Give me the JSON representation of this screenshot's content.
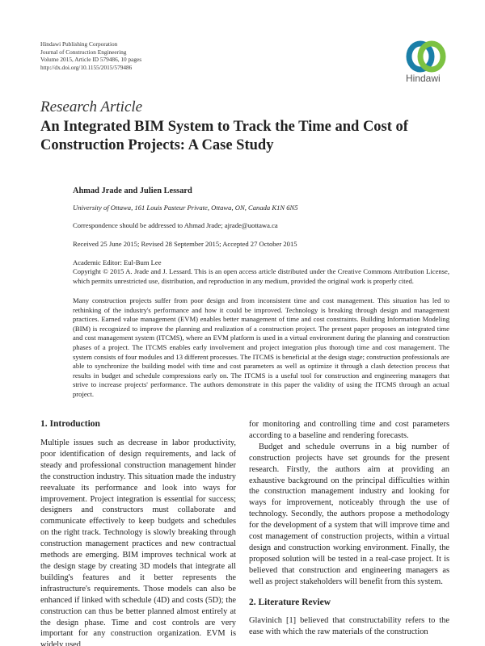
{
  "header": {
    "lines": [
      "Hindawi Publishing Corporation",
      "Journal of Construction Engineering",
      "Volume 2015, Article ID 579486, 10 pages",
      "http://dx.doi.org/10.1155/2015/579486"
    ],
    "logo_text": "Hindawi",
    "logo_colors": [
      "#1b7fa8",
      "#7cc242"
    ]
  },
  "article_type": "Research Article",
  "title": "An Integrated BIM System to Track the Time and Cost of Construction Projects: A Case Study",
  "authors": "Ahmad Jrade and Julien Lessard",
  "affiliation": "University of Ottawa, 161 Louis Pasteur Private, Ottawa, ON, Canada K1N 6N5",
  "correspondence": "Correspondence should be addressed to Ahmad Jrade; ajrade@uottawa.ca",
  "dates": "Received 25 June 2015; Revised 28 September 2015; Accepted 27 October 2015",
  "editor": "Academic Editor: Eul-Bum Lee",
  "copyright": "Copyright © 2015 A. Jrade and J. Lessard. This is an open access article distributed under the Creative Commons Attribution License, which permits unrestricted use, distribution, and reproduction in any medium, provided the original work is properly cited.",
  "abstract": "Many construction projects suffer from poor design and from inconsistent time and cost management. This situation has led to rethinking of the industry's performance and how it could be improved. Technology is breaking through design and management practices. Earned value management (EVM) enables better management of time and cost constraints. Building Information Modeling (BIM) is recognized to improve the planning and realization of a construction project. The present paper proposes an integrated time and cost management system (ITCMS), where an EVM platform is used in a virtual environment during the planning and construction phases of a project. The ITCMS enables early involvement and project integration plus thorough time and cost management. The system consists of four modules and 13 different processes. The ITCMS is beneficial at the design stage; construction professionals are able to synchronize the building model with time and cost parameters as well as optimize it through a clash detection process that results in budget and schedule compressions early on. The ITCMS is a useful tool for construction and engineering managers that strive to increase projects' performance. The authors demonstrate in this paper the validity of using the ITCMS through an actual project.",
  "sections": {
    "intro_heading": "1. Introduction",
    "intro_p1": "Multiple issues such as decrease in labor productivity, poor identification of design requirements, and lack of steady and professional construction management hinder the construction industry. This situation made the industry reevaluate its performance and look into ways for improvement. Project integration is essential for success; designers and constructors must collaborate and communicate effectively to keep budgets and schedules on the right track. Technology is slowly breaking through construction management practices and new contractual methods are emerging. BIM improves technical work at the design stage by creating 3D models that integrate all building's features and it better represents the infrastructure's requirements. Those models can also be enhanced if linked with schedule (4D) and costs (5D); the construction can thus be better planned almost entirely at the design phase. Time and cost controls are very important for any construction organization. EVM is widely used",
    "intro_p1_cont": "for monitoring and controlling time and cost parameters according to a baseline and rendering forecasts.",
    "intro_p2": "Budget and schedule overruns in a big number of construction projects have set grounds for the present research. Firstly, the authors aim at providing an exhaustive background on the principal difficulties within the construction management industry and looking for ways for improvement, noticeably through the use of technology. Secondly, the authors propose a methodology for the development of a system that will improve time and cost management of construction projects, within a virtual design and construction working environment. Finally, the proposed solution will be tested in a real-case project. It is believed that construction and engineering managers as well as project stakeholders will benefit from this system.",
    "lit_heading": "2. Literature Review",
    "lit_p1": "Glavinich [1] believed that constructability refers to the ease with which the raw materials of the construction"
  }
}
